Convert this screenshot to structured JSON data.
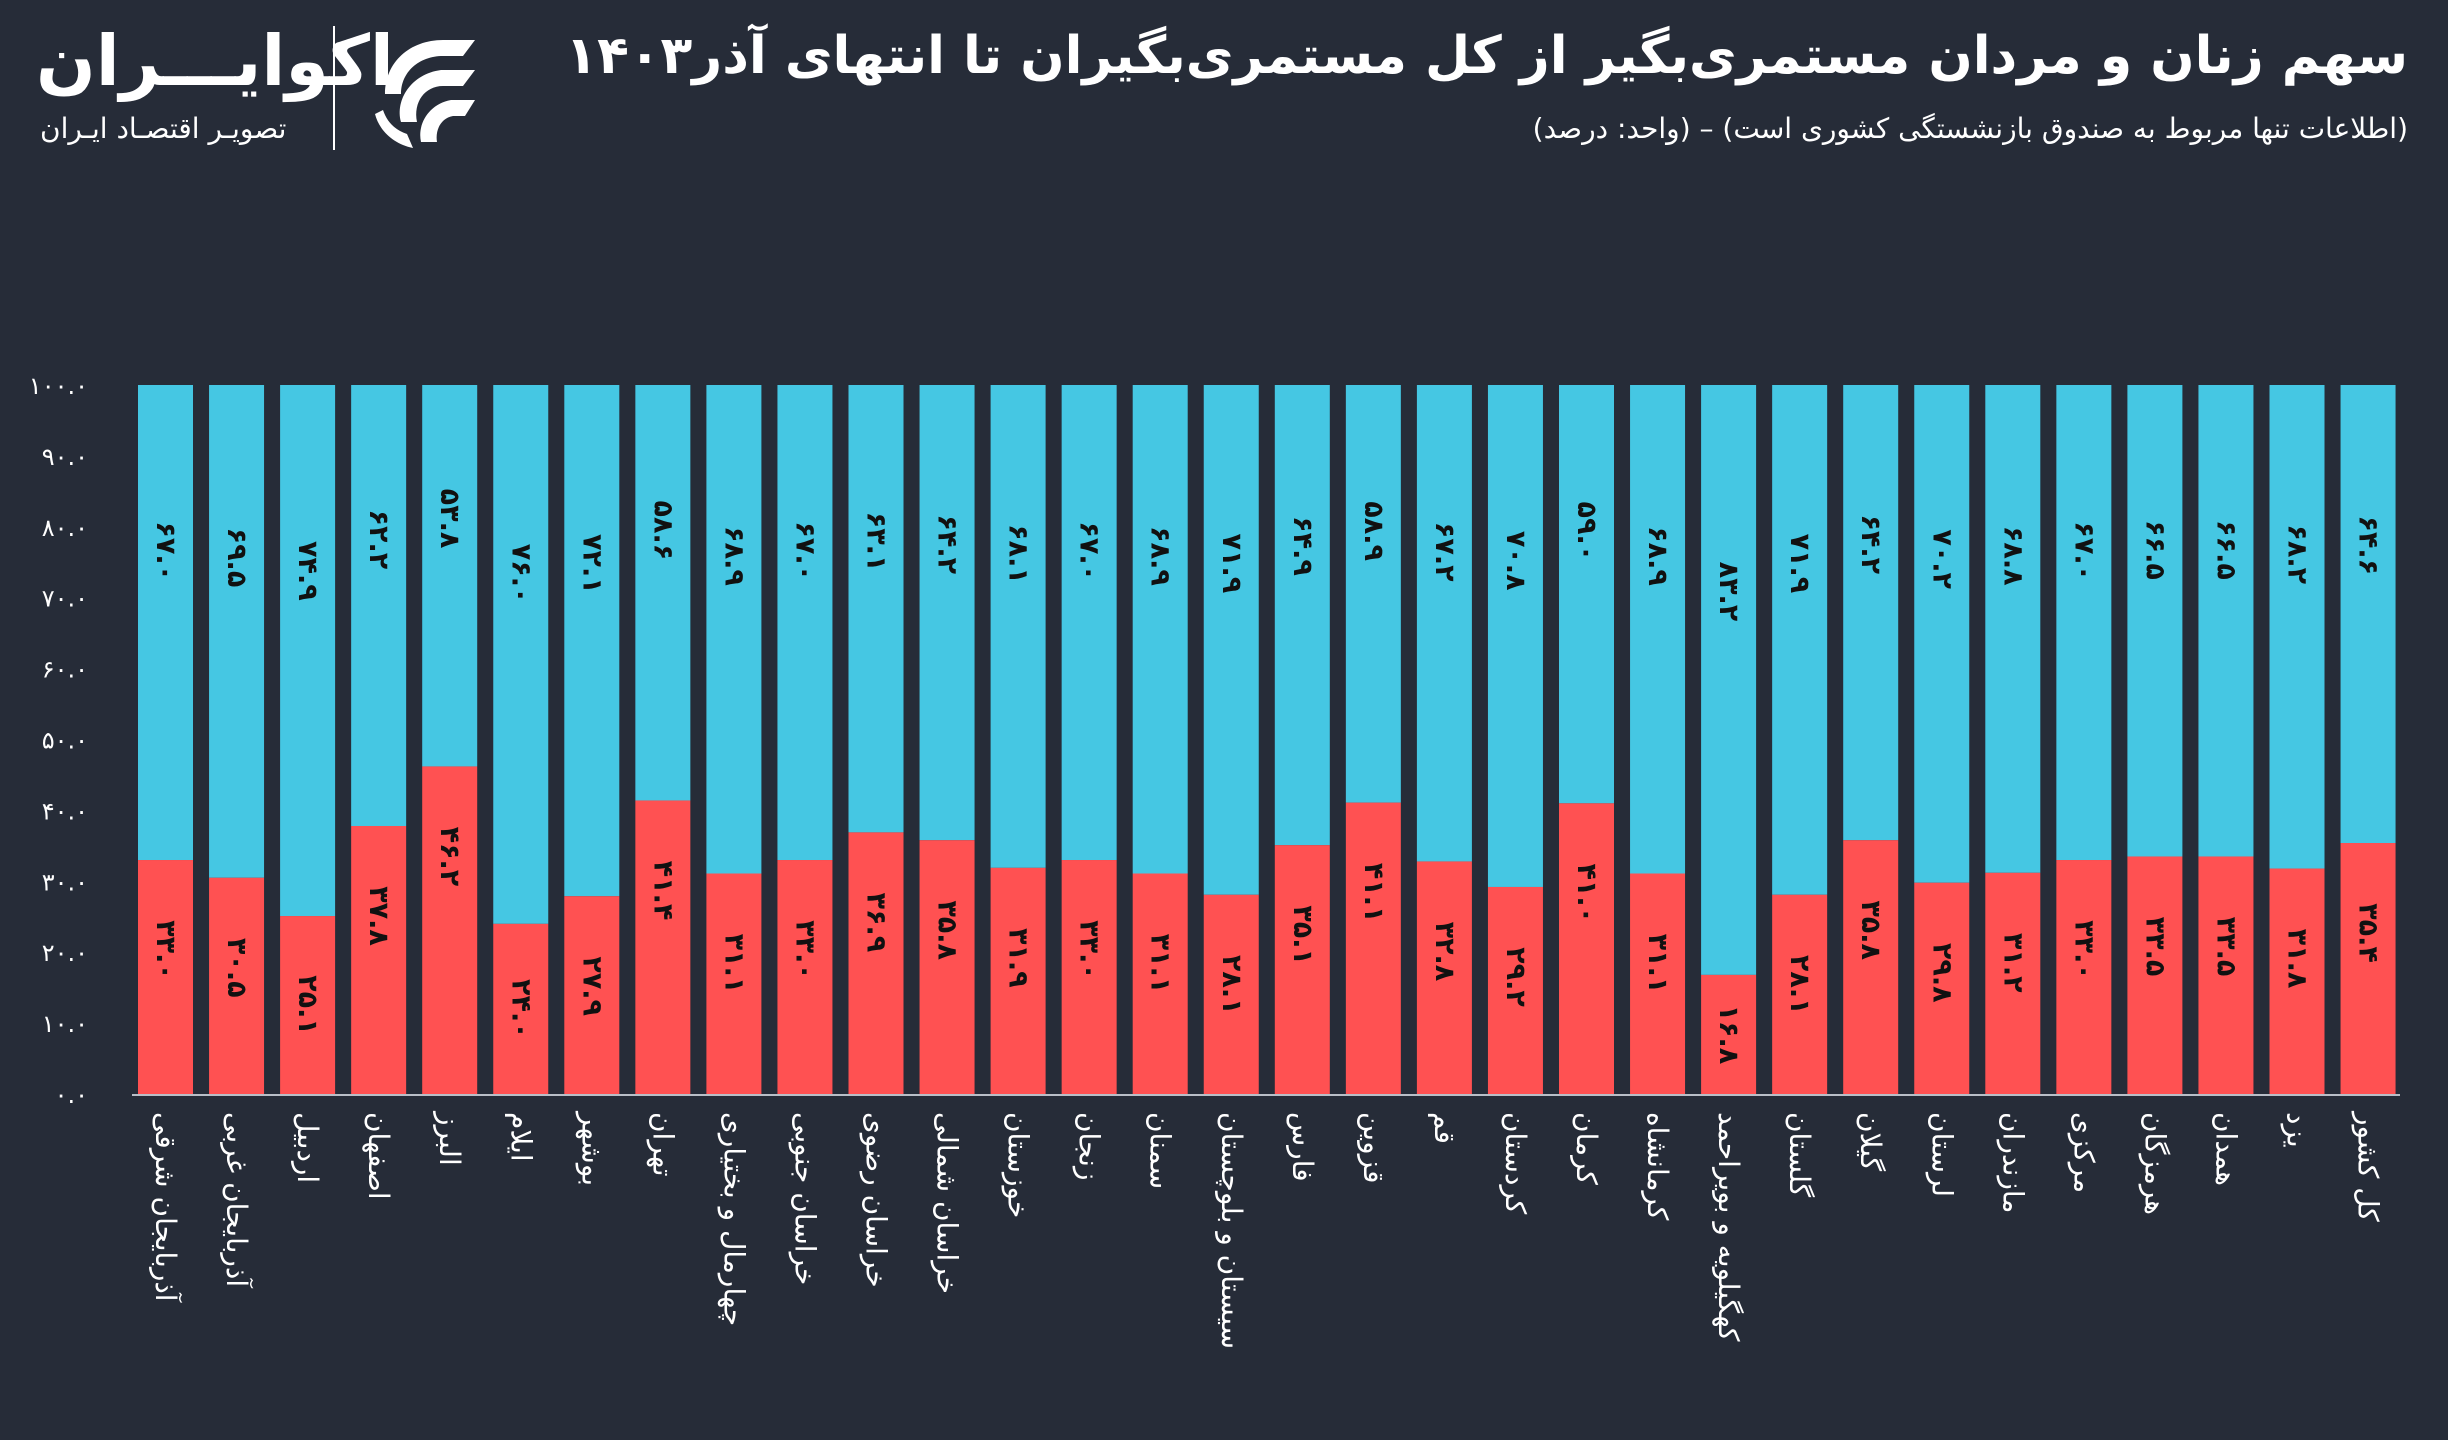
{
  "header": {
    "title": "سهم زنان و مردان مستمری‌بگیر از کل مستمری‌بگیران تا انتهای آذر۱۴۰۳",
    "subtitle": "(اطلاعات تنها مربوط به صندوق بازنشستگی کشوری است) – (واحد: درصد)"
  },
  "logo": {
    "name": "اکوایـــران",
    "tagline": "تصویـر اقتصـاد ایـران",
    "icon": "ecoiran-logo-mark"
  },
  "colors": {
    "background": "#262c38",
    "men": "#45c7e3",
    "women": "#ff5152",
    "text": "#ffffff"
  },
  "chart_data": {
    "type": "bar",
    "stacked": true,
    "ylim": [
      0,
      100
    ],
    "yticks": [
      "۰.۰",
      "۱۰.۰",
      "۲۰.۰",
      "۳۰.۰",
      "۴۰.۰",
      "۵۰.۰",
      "۶۰.۰",
      "۷۰.۰",
      "۸۰.۰",
      "۹۰.۰",
      "۱۰۰.۰"
    ],
    "categories": [
      "آذربایجان شرقی",
      "آذربایجان غربی",
      "اردبیل",
      "اصفهان",
      "البرز",
      "ایلام",
      "بوشهر",
      "تهران",
      "چهارمال و بختیاری",
      "خراسان جنوبی",
      "خراسان رضوی",
      "خراسان شمالی",
      "خوزستان",
      "زنجان",
      "سمنان",
      "سیستان و بلوچستان",
      "فارس",
      "قزوین",
      "قم",
      "کردستان",
      "کرمان",
      "کرمانشاه",
      "کهگیلویه و بویراحمد",
      "گلستان",
      "گیلان",
      "لرستان",
      "مازندران",
      "مرکزی",
      "هرمزگان",
      "همدان",
      "یزد",
      "کل کشور"
    ],
    "series": [
      {
        "values": [
          33.0,
          30.5,
          25.1,
          37.8,
          46.2,
          24.0,
          27.9,
          41.4,
          31.1,
          33.0,
          36.9,
          35.8,
          31.9,
          33.0,
          31.1,
          28.1,
          35.1,
          41.1,
          32.8,
          29.2,
          41.0,
          31.1,
          16.8,
          28.1,
          35.8,
          29.8,
          31.2,
          33.0,
          33.5,
          33.5,
          31.8,
          35.4
        ],
        "labels": [
          "۳۳.۰",
          "۳۰.۵",
          "۲۵.۱",
          "۳۷.۸",
          "۴۶.۲",
          "۲۴.۰",
          "۲۷.۹",
          "۴۱.۴",
          "۳۱.۱",
          "۳۳.۰",
          "۳۶.۹",
          "۳۵.۸",
          "۳۱.۹",
          "۳۳.۰",
          "۳۱.۱",
          "۲۸.۱",
          "۳۵.۱",
          "۴۱.۱",
          "۳۲.۸",
          "۲۹.۲",
          "۴۱.۰",
          "۳۱.۱",
          "۱۶.۸",
          "۲۸.۱",
          "۳۵.۸",
          "۲۹.۸",
          "۳۱.۲",
          "۳۳.۰",
          "۳۳.۵",
          "۳۳.۵",
          "۳۱.۸",
          "۳۵.۴"
        ],
        "color": "#ff5152"
      },
      {
        "values": [
          67.0,
          69.5,
          74.9,
          62.2,
          53.8,
          76.0,
          72.1,
          58.6,
          68.9,
          67.0,
          63.1,
          64.2,
          68.1,
          67.0,
          68.9,
          71.9,
          64.9,
          58.9,
          67.2,
          70.8,
          59.0,
          68.9,
          83.2,
          71.9,
          64.2,
          70.2,
          68.8,
          67.0,
          66.5,
          66.5,
          68.2,
          64.6
        ],
        "labels": [
          "۶۷.۰",
          "۶۹.۵",
          "۷۴.۹",
          "۶۲.۲",
          "۵۳.۸",
          "۷۶.۰",
          "۷۲.۱",
          "۵۸.۶",
          "۶۸.۹",
          "۶۷.۰",
          "۶۳.۱",
          "۶۴.۲",
          "۶۸.۱",
          "۶۷.۰",
          "۶۸.۹",
          "۷۱.۹",
          "۶۴.۹",
          "۵۸.۹",
          "۶۷.۲",
          "۷۰.۸",
          "۵۹.۰",
          "۶۸.۹",
          "۸۳.۲",
          "۷۱.۹",
          "۶۴.۲",
          "۷۰.۲",
          "۶۸.۸",
          "۶۷.۰",
          "۶۶.۵",
          "۶۶.۵",
          "۶۸.۲",
          "۶۴.۶"
        ],
        "color": "#45c7e3"
      }
    ]
  }
}
